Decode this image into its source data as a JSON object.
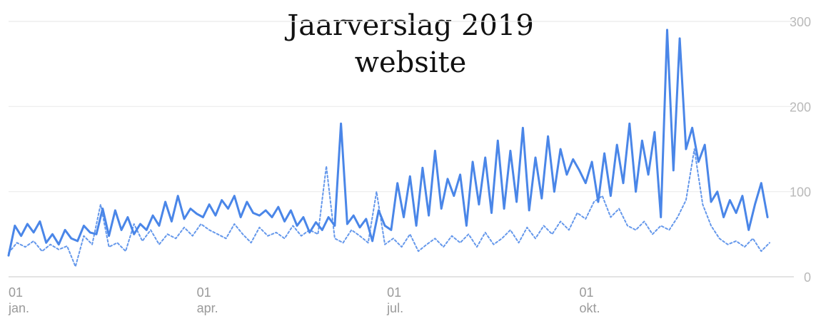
{
  "chart_data": {
    "type": "line",
    "title_line1": "Jaarverslag 2019",
    "title_line2": "website",
    "xlabel": "",
    "ylabel": "",
    "ylim": [
      0,
      300
    ],
    "y_ticks": [
      "0",
      "100",
      "200",
      "300"
    ],
    "x_ticks": [
      {
        "day": "01",
        "month": "jan."
      },
      {
        "day": "01",
        "month": "apr."
      },
      {
        "day": "01",
        "month": "jul."
      },
      {
        "day": "01",
        "month": "okt."
      }
    ],
    "grid": "horizontal",
    "legend": "none",
    "colors": {
      "series": "#4a86e8",
      "grid": "#ebebeb",
      "axis": "#dadada"
    },
    "series": [
      {
        "style": "solid",
        "x": [
          "2019-01-01",
          "2019-01-04",
          "2019-01-07",
          "2019-01-10",
          "2019-01-13",
          "2019-01-16",
          "2019-01-19",
          "2019-01-22",
          "2019-01-25",
          "2019-01-28",
          "2019-01-31",
          "2019-02-03",
          "2019-02-06",
          "2019-02-09",
          "2019-02-12",
          "2019-02-15",
          "2019-02-18",
          "2019-02-21",
          "2019-02-24",
          "2019-02-27",
          "2019-03-02",
          "2019-03-05",
          "2019-03-08",
          "2019-03-11",
          "2019-03-14",
          "2019-03-17",
          "2019-03-20",
          "2019-03-23",
          "2019-03-26",
          "2019-03-29",
          "2019-04-01",
          "2019-04-04",
          "2019-04-07",
          "2019-04-10",
          "2019-04-13",
          "2019-04-16",
          "2019-04-19",
          "2019-04-22",
          "2019-04-25",
          "2019-04-28",
          "2019-05-01",
          "2019-05-04",
          "2019-05-07",
          "2019-05-10",
          "2019-05-13",
          "2019-05-16",
          "2019-05-19",
          "2019-05-22",
          "2019-05-25",
          "2019-05-28",
          "2019-05-31",
          "2019-06-03",
          "2019-06-06",
          "2019-06-09",
          "2019-06-12",
          "2019-06-15",
          "2019-06-18",
          "2019-06-21",
          "2019-06-24",
          "2019-06-27",
          "2019-06-30",
          "2019-07-03",
          "2019-07-06",
          "2019-07-09",
          "2019-07-12",
          "2019-07-15",
          "2019-07-18",
          "2019-07-21",
          "2019-07-24",
          "2019-07-27",
          "2019-07-30",
          "2019-08-02",
          "2019-08-05",
          "2019-08-08",
          "2019-08-11",
          "2019-08-14",
          "2019-08-17",
          "2019-08-20",
          "2019-08-23",
          "2019-08-26",
          "2019-08-29",
          "2019-09-01",
          "2019-09-04",
          "2019-09-07",
          "2019-09-10",
          "2019-09-13",
          "2019-09-16",
          "2019-09-19",
          "2019-09-22",
          "2019-09-25",
          "2019-09-28",
          "2019-10-01",
          "2019-10-04",
          "2019-10-07",
          "2019-10-10",
          "2019-10-13",
          "2019-10-16",
          "2019-10-19",
          "2019-10-22",
          "2019-10-25",
          "2019-10-28",
          "2019-10-31",
          "2019-11-03",
          "2019-11-06",
          "2019-11-09",
          "2019-11-12",
          "2019-11-15",
          "2019-11-18",
          "2019-11-21",
          "2019-11-24",
          "2019-11-27",
          "2019-11-30",
          "2019-12-03",
          "2019-12-06",
          "2019-12-09",
          "2019-12-12",
          "2019-12-15",
          "2019-12-18",
          "2019-12-21",
          "2019-12-24",
          "2019-12-27",
          "2019-12-30"
        ],
        "values": [
          25,
          60,
          48,
          62,
          52,
          65,
          40,
          50,
          38,
          55,
          45,
          42,
          60,
          52,
          50,
          80,
          48,
          78,
          55,
          70,
          50,
          62,
          55,
          72,
          60,
          88,
          65,
          95,
          68,
          80,
          74,
          70,
          85,
          72,
          90,
          80,
          95,
          70,
          88,
          75,
          72,
          78,
          70,
          82,
          65,
          78,
          60,
          70,
          52,
          64,
          55,
          70,
          60,
          180,
          62,
          72,
          58,
          68,
          42,
          78,
          60,
          55,
          110,
          70,
          118,
          60,
          128,
          72,
          148,
          80,
          115,
          95,
          120,
          60,
          135,
          85,
          140,
          75,
          160,
          80,
          148,
          88,
          175,
          78,
          140,
          92,
          165,
          100,
          150,
          120,
          138,
          125,
          110,
          135,
          88,
          145,
          95,
          155,
          110,
          180,
          100,
          160,
          120,
          170,
          70,
          290,
          125,
          280,
          150,
          175,
          135,
          155,
          88,
          100,
          70,
          90,
          75,
          95,
          55,
          85,
          110,
          70
        ]
      },
      {
        "style": "dotted",
        "x": [
          "2019-01-01",
          "2019-01-05",
          "2019-01-09",
          "2019-01-13",
          "2019-01-17",
          "2019-01-21",
          "2019-01-25",
          "2019-01-29",
          "2019-02-02",
          "2019-02-06",
          "2019-02-10",
          "2019-02-14",
          "2019-02-18",
          "2019-02-22",
          "2019-02-26",
          "2019-03-02",
          "2019-03-06",
          "2019-03-10",
          "2019-03-14",
          "2019-03-18",
          "2019-03-22",
          "2019-03-26",
          "2019-03-30",
          "2019-04-03",
          "2019-04-07",
          "2019-04-11",
          "2019-04-15",
          "2019-04-19",
          "2019-04-23",
          "2019-04-27",
          "2019-05-01",
          "2019-05-05",
          "2019-05-09",
          "2019-05-13",
          "2019-05-17",
          "2019-05-21",
          "2019-05-25",
          "2019-05-29",
          "2019-06-02",
          "2019-06-06",
          "2019-06-10",
          "2019-06-14",
          "2019-06-18",
          "2019-06-22",
          "2019-06-26",
          "2019-06-30",
          "2019-07-04",
          "2019-07-08",
          "2019-07-12",
          "2019-07-16",
          "2019-07-20",
          "2019-07-24",
          "2019-07-28",
          "2019-08-01",
          "2019-08-05",
          "2019-08-09",
          "2019-08-13",
          "2019-08-17",
          "2019-08-21",
          "2019-08-25",
          "2019-08-29",
          "2019-09-02",
          "2019-09-06",
          "2019-09-10",
          "2019-09-14",
          "2019-09-18",
          "2019-09-22",
          "2019-09-26",
          "2019-09-30",
          "2019-10-04",
          "2019-10-08",
          "2019-10-12",
          "2019-10-16",
          "2019-10-20",
          "2019-10-24",
          "2019-10-28",
          "2019-11-01",
          "2019-11-05",
          "2019-11-09",
          "2019-11-13",
          "2019-11-17",
          "2019-11-21",
          "2019-11-25",
          "2019-11-29",
          "2019-12-03",
          "2019-12-07",
          "2019-12-11",
          "2019-12-15",
          "2019-12-19",
          "2019-12-23",
          "2019-12-27",
          "2019-12-31"
        ],
        "values": [
          28,
          40,
          35,
          42,
          30,
          38,
          32,
          36,
          12,
          48,
          38,
          85,
          35,
          40,
          30,
          62,
          42,
          55,
          38,
          50,
          45,
          58,
          48,
          62,
          55,
          50,
          45,
          62,
          50,
          40,
          58,
          48,
          52,
          45,
          60,
          48,
          55,
          50,
          130,
          45,
          40,
          55,
          48,
          40,
          100,
          38,
          45,
          35,
          50,
          30,
          38,
          45,
          35,
          48,
          40,
          50,
          35,
          52,
          38,
          45,
          55,
          40,
          58,
          45,
          60,
          50,
          65,
          55,
          75,
          68,
          88,
          95,
          70,
          80,
          60,
          55,
          65,
          50,
          60,
          55,
          70,
          90,
          150,
          85,
          60,
          45,
          38,
          42,
          35,
          45,
          30,
          40
        ]
      }
    ]
  }
}
